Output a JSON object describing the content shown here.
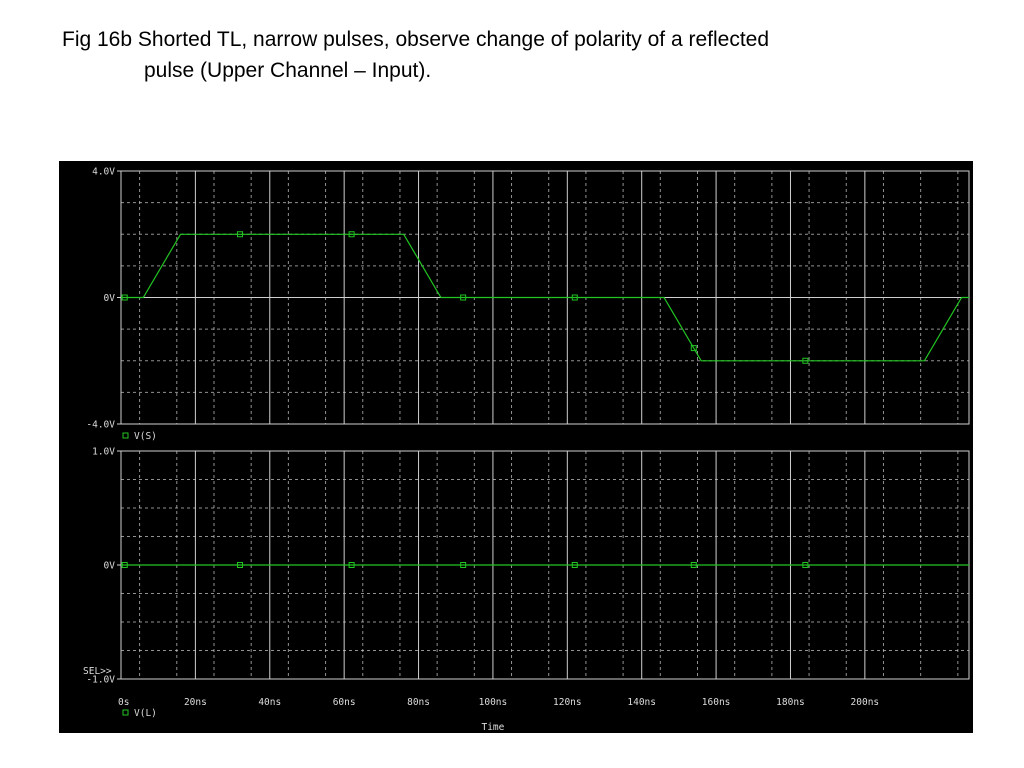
{
  "figure": {
    "caption_line1": "Fig 16b  Shorted TL, narrow pulses, observe change of polarity of a reflected",
    "caption_line2": "pulse (Upper Channel – Input)."
  },
  "colors": {
    "background": "#000000",
    "grid": "#cfcfcf",
    "trace": "#22c522",
    "text": "#dcdcdc"
  },
  "chart_data": [
    {
      "type": "line",
      "panel": "upper",
      "series": [
        {
          "name": "V(S)",
          "points": [
            [
              0,
              0
            ],
            [
              3,
              0
            ],
            [
              8,
              2
            ],
            [
              38,
              2
            ],
            [
              43,
              0
            ],
            [
              73,
              0
            ],
            [
              78,
              -2
            ],
            [
              108,
              -2
            ],
            [
              113,
              0
            ],
            [
              114,
              0
            ]
          ]
        }
      ],
      "marker_x": [
        0.5,
        16,
        31,
        46,
        61,
        77,
        92
      ],
      "ylim": [
        -4,
        4
      ],
      "ytick_labels": [
        "4.0V",
        "0V",
        "-4.0V"
      ],
      "legend": "V(S)",
      "grid": true
    },
    {
      "type": "line",
      "panel": "lower",
      "series": [
        {
          "name": "V(L)",
          "points": [
            [
              0,
              0
            ],
            [
              114,
              0
            ]
          ]
        }
      ],
      "marker_x": [
        0.5,
        16,
        31,
        46,
        61,
        77,
        92
      ],
      "ylim": [
        -1,
        1
      ],
      "ytick_labels": [
        "1.0V",
        "0V",
        "-1.0V"
      ],
      "legend": "V(L)",
      "sel_label": "SEL>>",
      "grid": true
    }
  ],
  "x_axis": {
    "tick_labels": [
      "0s",
      "20ns",
      "40ns",
      "60ns",
      "80ns",
      "100ns",
      "120ns",
      "140ns",
      "160ns",
      "180ns",
      "200ns"
    ],
    "label": "Time"
  }
}
